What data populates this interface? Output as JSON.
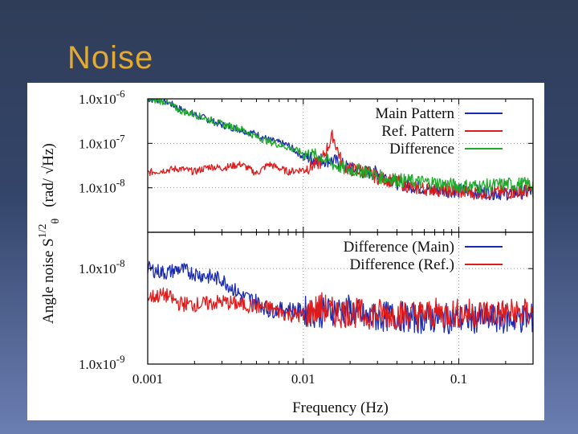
{
  "slide": {
    "title": "Noise"
  },
  "colors": {
    "main": "#1a2bb0",
    "ref": "#e01b1b",
    "diff": "#1faa2a"
  },
  "chart_data": [
    {
      "type": "line",
      "panel": "top",
      "x_scale": "log",
      "y_scale": "log",
      "xlim": [
        0.001,
        0.3
      ],
      "ylim": [
        1e-09,
        1e-06
      ],
      "ytick_values": [
        1e-06,
        1e-07,
        1e-08
      ],
      "ytick_labels": [
        {
          "base": "1.0x10",
          "exp": "-6"
        },
        {
          "base": "1.0x10",
          "exp": "-7"
        },
        {
          "base": "1.0x10",
          "exp": "-8"
        }
      ],
      "legend_position": "top-right",
      "series": [
        {
          "name": "Main Pattern",
          "color": "#1a2bb0",
          "points": [
            [
              0.001,
              1e-06
            ],
            [
              0.0013,
              9e-07
            ],
            [
              0.0016,
              6e-07
            ],
            [
              0.002,
              4.5e-07
            ],
            [
              0.0025,
              3.3e-07
            ],
            [
              0.003,
              2.6e-07
            ],
            [
              0.004,
              2e-07
            ],
            [
              0.005,
              1.6e-07
            ],
            [
              0.006,
              1.2e-07
            ],
            [
              0.008,
              9e-08
            ],
            [
              0.01,
              5e-08
            ],
            [
              0.013,
              4.3e-08
            ],
            [
              0.016,
              4e-08
            ],
            [
              0.02,
              2.7e-08
            ],
            [
              0.025,
              2.2e-08
            ],
            [
              0.03,
              2.2e-08
            ],
            [
              0.04,
              1.3e-08
            ],
            [
              0.05,
              1.1e-08
            ],
            [
              0.07,
              8.8e-09
            ],
            [
              0.1,
              8.7e-09
            ],
            [
              0.15,
              7.9e-09
            ],
            [
              0.2,
              7.5e-09
            ],
            [
              0.3,
              8.3e-09
            ]
          ]
        },
        {
          "name": "Ref. Pattern",
          "color": "#e01b1b",
          "points": [
            [
              0.001,
              2.2e-08
            ],
            [
              0.0013,
              2.5e-08
            ],
            [
              0.0016,
              2.7e-08
            ],
            [
              0.002,
              2.3e-08
            ],
            [
              0.0025,
              3e-08
            ],
            [
              0.003,
              2.8e-08
            ],
            [
              0.004,
              3.4e-08
            ],
            [
              0.005,
              2.1e-08
            ],
            [
              0.006,
              3.4e-08
            ],
            [
              0.008,
              2.3e-08
            ],
            [
              0.01,
              2.6e-08
            ],
            [
              0.013,
              3.8e-08
            ],
            [
              0.0155,
              1.5e-07
            ],
            [
              0.018,
              3e-08
            ],
            [
              0.02,
              2.6e-08
            ],
            [
              0.025,
              2.4e-08
            ],
            [
              0.03,
              1.7e-08
            ],
            [
              0.04,
              1.4e-08
            ],
            [
              0.05,
              1e-08
            ],
            [
              0.07,
              9.4e-09
            ],
            [
              0.1,
              8e-09
            ],
            [
              0.15,
              7.8e-09
            ],
            [
              0.2,
              7.9e-09
            ],
            [
              0.3,
              8.6e-09
            ]
          ]
        },
        {
          "name": "Difference",
          "color": "#1faa2a",
          "points": [
            [
              0.001,
              1e-06
            ],
            [
              0.0013,
              8.6e-07
            ],
            [
              0.0016,
              5.5e-07
            ],
            [
              0.002,
              4.4e-07
            ],
            [
              0.0025,
              3.4e-07
            ],
            [
              0.003,
              2.7e-07
            ],
            [
              0.004,
              2.1e-07
            ],
            [
              0.005,
              1.4e-07
            ],
            [
              0.006,
              1.1e-07
            ],
            [
              0.008,
              8.1e-08
            ],
            [
              0.01,
              6e-08
            ],
            [
              0.013,
              5e-08
            ],
            [
              0.016,
              3.2e-08
            ],
            [
              0.02,
              2.5e-08
            ],
            [
              0.025,
              2.4e-08
            ],
            [
              0.03,
              1.8e-08
            ],
            [
              0.04,
              1.5e-08
            ],
            [
              0.05,
              1.4e-08
            ],
            [
              0.07,
              1.3e-08
            ],
            [
              0.1,
              1.1e-08
            ],
            [
              0.15,
              1.1e-08
            ],
            [
              0.2,
              1.2e-08
            ],
            [
              0.3,
              1.2e-08
            ]
          ]
        }
      ]
    },
    {
      "type": "line",
      "panel": "bottom",
      "x_scale": "log",
      "y_scale": "log",
      "xlim": [
        0.001,
        0.3
      ],
      "ylim": [
        1e-09,
        2.4e-08
      ],
      "ytick_values": [
        1e-08,
        1e-09
      ],
      "ytick_labels": [
        {
          "base": "1.0x10",
          "exp": "-8"
        },
        {
          "base": "1.0x10",
          "exp": "-9"
        }
      ],
      "xtick_values": [
        0.001,
        0.01,
        0.1
      ],
      "xtick_labels": [
        "0.001",
        "0.01",
        "0.1"
      ],
      "xlabel": "Frequency (Hz)",
      "legend_position": "top-right",
      "series": [
        {
          "name": "Difference (Main)",
          "color": "#1a2bb0",
          "points": [
            [
              0.001,
              1e-08
            ],
            [
              0.0013,
              9e-09
            ],
            [
              0.0016,
              9.9e-09
            ],
            [
              0.002,
              8.9e-09
            ],
            [
              0.0025,
              8.2e-09
            ],
            [
              0.003,
              7.7e-09
            ],
            [
              0.004,
              5.2e-09
            ],
            [
              0.005,
              4.6e-09
            ],
            [
              0.006,
              3.6e-09
            ],
            [
              0.008,
              3.8e-09
            ],
            [
              0.01,
              3.6e-09
            ],
            [
              0.013,
              3.4e-09
            ],
            [
              0.016,
              3.7e-09
            ],
            [
              0.02,
              3.7e-09
            ],
            [
              0.025,
              3e-09
            ],
            [
              0.03,
              3.1e-09
            ],
            [
              0.04,
              3.2e-09
            ],
            [
              0.05,
              3e-09
            ],
            [
              0.07,
              3e-09
            ],
            [
              0.1,
              3e-09
            ],
            [
              0.15,
              3e-09
            ],
            [
              0.2,
              3e-09
            ],
            [
              0.3,
              3e-09
            ]
          ]
        },
        {
          "name": "Difference (Ref.)",
          "color": "#e01b1b",
          "points": [
            [
              0.001,
              5e-09
            ],
            [
              0.0013,
              5.3e-09
            ],
            [
              0.0016,
              4.3e-09
            ],
            [
              0.002,
              4.2e-09
            ],
            [
              0.0025,
              4.3e-09
            ],
            [
              0.003,
              4.5e-09
            ],
            [
              0.004,
              4.2e-09
            ],
            [
              0.005,
              4e-09
            ],
            [
              0.006,
              3.9e-09
            ],
            [
              0.008,
              3.3e-09
            ],
            [
              0.01,
              3.2e-09
            ],
            [
              0.013,
              4e-09
            ],
            [
              0.016,
              3.4e-09
            ],
            [
              0.02,
              3.5e-09
            ],
            [
              0.025,
              3.3e-09
            ],
            [
              0.03,
              3.4e-09
            ],
            [
              0.04,
              3.3e-09
            ],
            [
              0.05,
              3.3e-09
            ],
            [
              0.07,
              3.4e-09
            ],
            [
              0.1,
              3.4e-09
            ],
            [
              0.15,
              3.4e-09
            ],
            [
              0.2,
              3.4e-09
            ],
            [
              0.3,
              3.4e-09
            ]
          ]
        }
      ]
    }
  ],
  "ylabel": {
    "text": "Angle noise  S",
    "superscript": "1/2",
    "subscript": "θ",
    "units": "(rad/ √Hz)"
  }
}
